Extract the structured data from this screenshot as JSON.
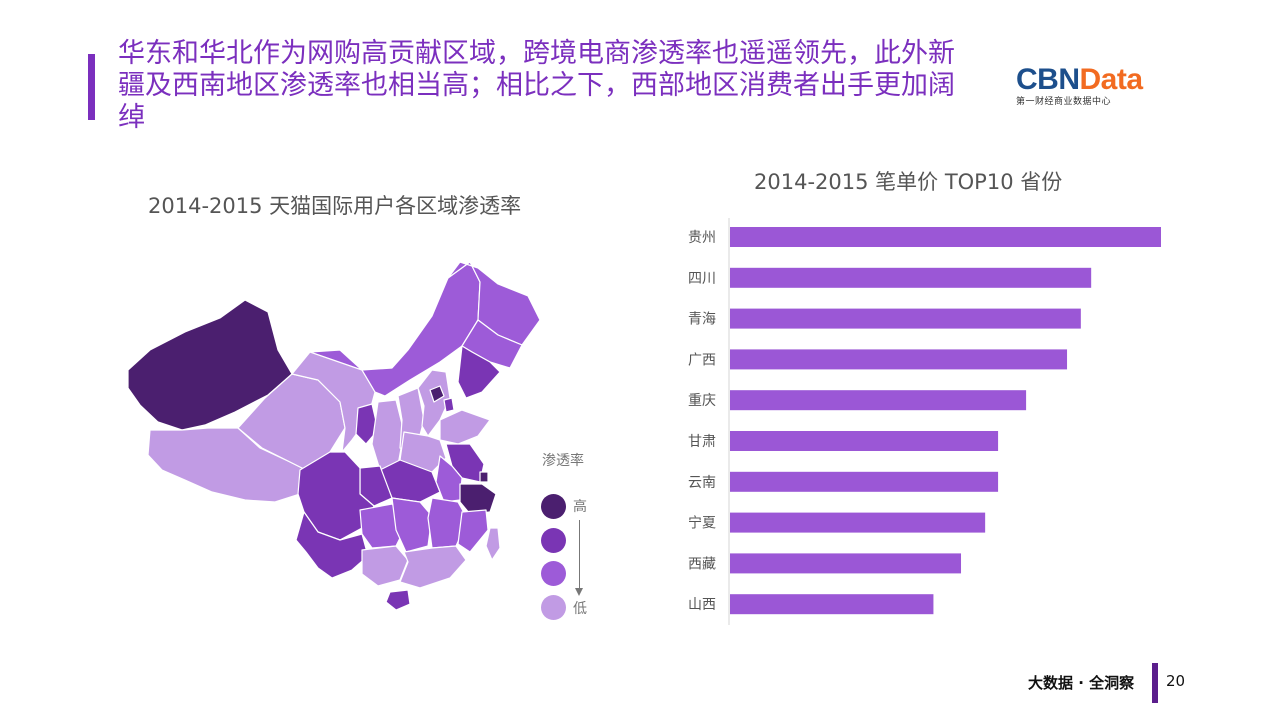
{
  "slide": {
    "title": "华东和华北作为网购高贡献区域，跨境电商渗透率也遥遥领先，此外新疆及西南地区渗透率也相当高；相比之下，西部地区消费者出手更加阔绰",
    "logo_main_a": "CBN",
    "logo_main_b": "Data",
    "logo_sub": "第一财经商业数据中心",
    "map_title": "2014-2015 天猫国际用户各区域渗透率",
    "legend_title": "渗透率",
    "legend_high": "高",
    "legend_low": "低",
    "footer_text": "大数据 · 全洞察",
    "page_number": "20"
  },
  "colors": {
    "accent": "#7b2fbe",
    "bar": "#9b57d6",
    "level_1": "#4b1f6f",
    "level_2": "#7a35b4",
    "level_3": "#9d5bd8",
    "level_4": "#c19be4"
  },
  "chart_data": [
    {
      "type": "bar",
      "orientation": "horizontal",
      "title": "2014-2015 笔单价 TOP10 省份",
      "categories": [
        "贵州",
        "四川",
        "青海",
        "广西",
        "重庆",
        "甘肃",
        "云南",
        "宁夏",
        "西藏",
        "山西"
      ],
      "values": [
        100,
        83.8,
        81.4,
        78.2,
        68.7,
        62.2,
        62.2,
        59.2,
        53.6,
        47.2
      ],
      "xlim": [
        0,
        100
      ],
      "grid": false,
      "legend": "none"
    }
  ]
}
